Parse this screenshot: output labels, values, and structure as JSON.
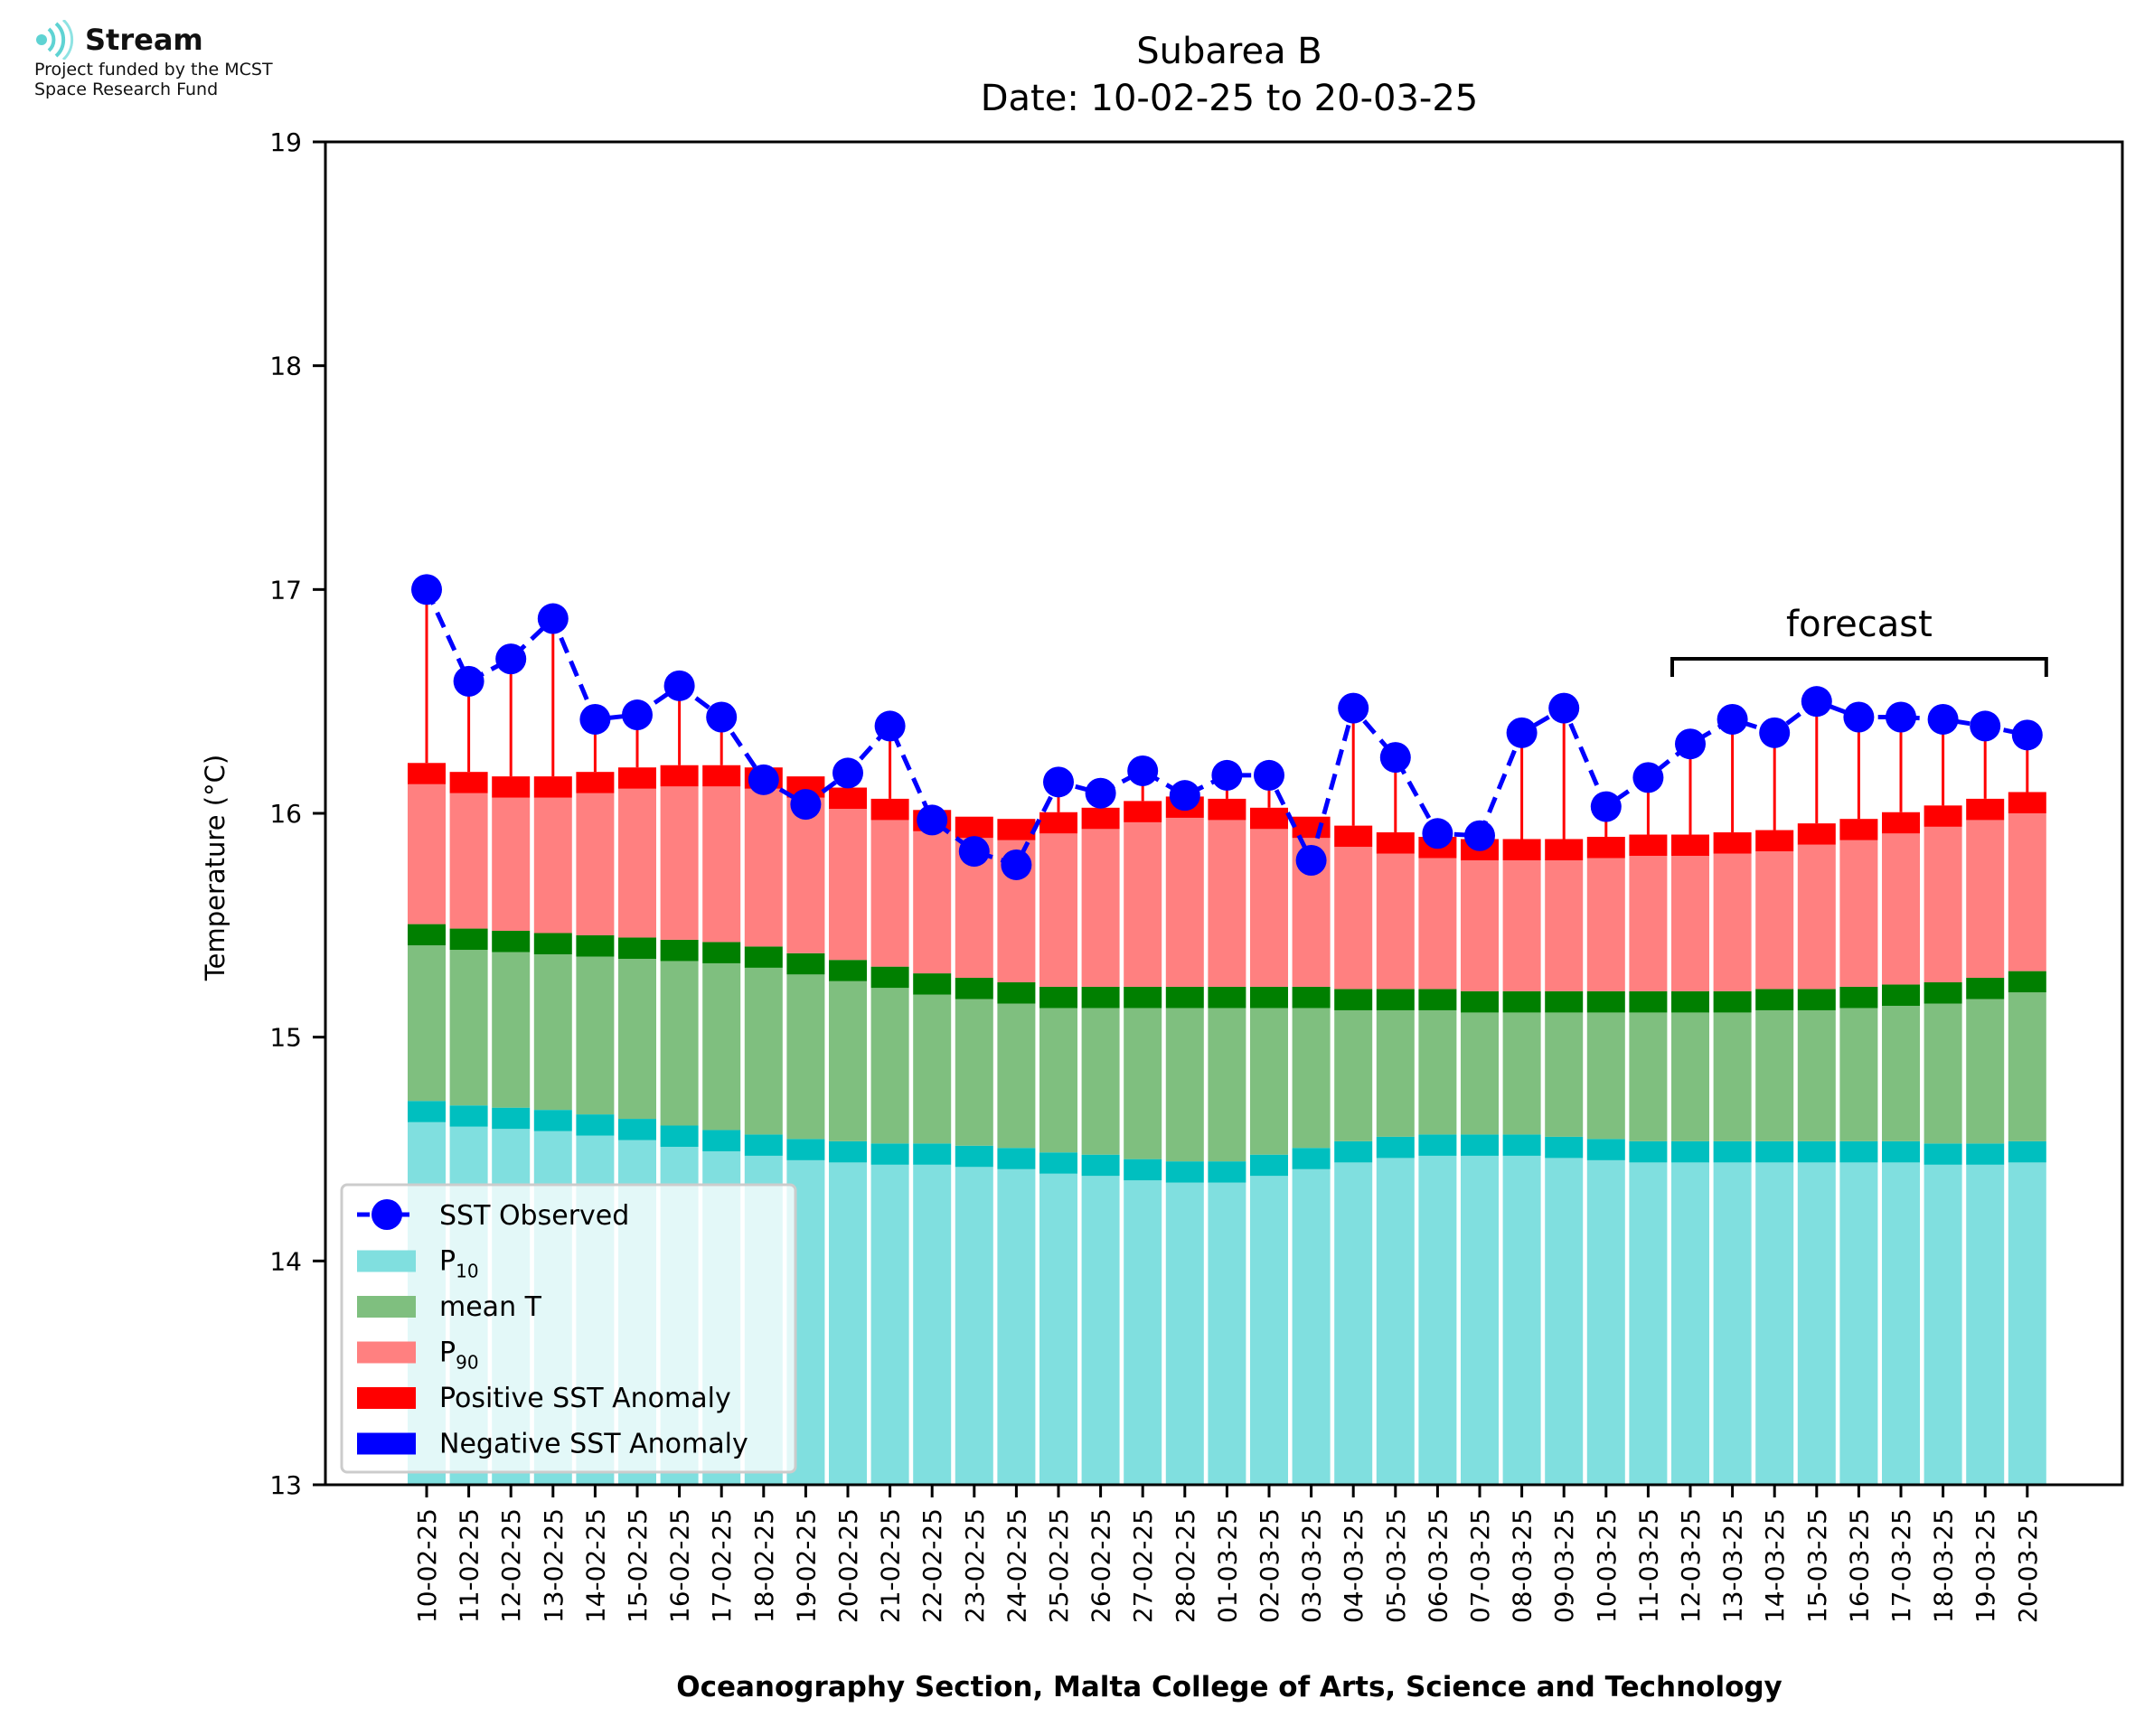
{
  "branding": {
    "name": "Stream",
    "line1": "Project funded by the MCST",
    "line2": "Space Research Fund"
  },
  "chart_data": {
    "type": "bar",
    "title": "Subarea B",
    "subtitle": "Date: 10-02-25 to 20-03-25",
    "xlabel": "Oceanography Section, Malta College of Arts, Science and Technology",
    "ylabel": "Temperature (°C)",
    "ylim": [
      13,
      19
    ],
    "yticks": [
      13,
      14,
      15,
      16,
      17,
      18,
      19
    ],
    "categories": [
      "10-02-25",
      "11-02-25",
      "12-02-25",
      "13-02-25",
      "14-02-25",
      "15-02-25",
      "16-02-25",
      "17-02-25",
      "18-02-25",
      "19-02-25",
      "20-02-25",
      "21-02-25",
      "22-02-25",
      "23-02-25",
      "24-02-25",
      "25-02-25",
      "26-02-25",
      "27-02-25",
      "28-02-25",
      "01-03-25",
      "02-03-25",
      "03-03-25",
      "04-03-25",
      "05-03-25",
      "06-03-25",
      "07-03-25",
      "08-03-25",
      "09-03-25",
      "10-03-25",
      "11-03-25",
      "12-03-25",
      "13-03-25",
      "14-03-25",
      "15-03-25",
      "16-03-25",
      "17-03-25",
      "18-03-25",
      "19-03-25",
      "20-03-25"
    ],
    "series": [
      {
        "name": "P10",
        "color": "#80dfdf",
        "values": [
          14.62,
          14.6,
          14.59,
          14.58,
          14.56,
          14.54,
          14.51,
          14.49,
          14.47,
          14.45,
          14.44,
          14.43,
          14.43,
          14.42,
          14.41,
          14.39,
          14.38,
          14.36,
          14.35,
          14.35,
          14.38,
          14.41,
          14.44,
          14.46,
          14.47,
          14.47,
          14.47,
          14.46,
          14.45,
          14.44,
          14.44,
          14.44,
          14.44,
          14.44,
          14.44,
          14.44,
          14.43,
          14.43,
          14.44
        ]
      },
      {
        "name": "mean T",
        "color": "#7fbf7f",
        "values": [
          15.41,
          15.39,
          15.38,
          15.37,
          15.36,
          15.35,
          15.34,
          15.33,
          15.31,
          15.28,
          15.25,
          15.22,
          15.19,
          15.17,
          15.15,
          15.13,
          15.13,
          15.13,
          15.13,
          15.13,
          15.13,
          15.13,
          15.12,
          15.12,
          15.12,
          15.11,
          15.11,
          15.11,
          15.11,
          15.11,
          15.11,
          15.11,
          15.12,
          15.12,
          15.13,
          15.14,
          15.15,
          15.17,
          15.2
        ]
      },
      {
        "name": "P90",
        "color": "#ff8080",
        "values": [
          16.13,
          16.09,
          16.07,
          16.07,
          16.09,
          16.11,
          16.12,
          16.12,
          16.11,
          16.07,
          16.02,
          15.97,
          15.92,
          15.89,
          15.88,
          15.91,
          15.93,
          15.96,
          15.98,
          15.97,
          15.93,
          15.89,
          15.85,
          15.82,
          15.8,
          15.79,
          15.79,
          15.79,
          15.8,
          15.81,
          15.81,
          15.82,
          15.83,
          15.86,
          15.88,
          15.91,
          15.94,
          15.97,
          16.0
        ]
      },
      {
        "name": "SST Observed",
        "color": "#0000ff",
        "values": [
          17.0,
          16.59,
          16.69,
          16.87,
          16.42,
          16.44,
          16.57,
          16.43,
          16.15,
          16.04,
          16.18,
          16.39,
          15.97,
          15.83,
          15.77,
          16.14,
          16.09,
          16.19,
          16.08,
          16.17,
          16.17,
          15.79,
          16.47,
          16.25,
          15.91,
          15.9,
          16.36,
          16.47,
          16.03,
          16.16,
          16.31,
          16.42,
          16.36,
          16.5,
          16.43,
          16.43,
          16.42,
          16.39,
          16.35
        ]
      }
    ],
    "band_colors": {
      "p10_band": "#00bfbf",
      "mean_band": "#007f00",
      "p90_band": "#ff0000",
      "positive_anomaly": "#ff0000",
      "negative_anomaly": "#0000ff"
    },
    "forecast": {
      "label": "forecast",
      "start_category": "12-03-25",
      "end_category": "20-03-25"
    },
    "legend": {
      "position": "bottom-left",
      "entries": [
        {
          "label": "SST Observed",
          "sub": "",
          "kind": "marker",
          "color": "#0000ff"
        },
        {
          "label": "P",
          "sub": "10",
          "kind": "patch",
          "color": "#80dfdf"
        },
        {
          "label": "mean T",
          "sub": "",
          "kind": "patch",
          "color": "#7fbf7f"
        },
        {
          "label": "P",
          "sub": "90",
          "kind": "patch",
          "color": "#ff8080"
        },
        {
          "label": "Positive SST Anomaly",
          "sub": "",
          "kind": "patch",
          "color": "#ff0000"
        },
        {
          "label": "Negative SST Anomaly",
          "sub": "",
          "kind": "patch",
          "color": "#0000ff"
        }
      ]
    },
    "grid": false
  }
}
